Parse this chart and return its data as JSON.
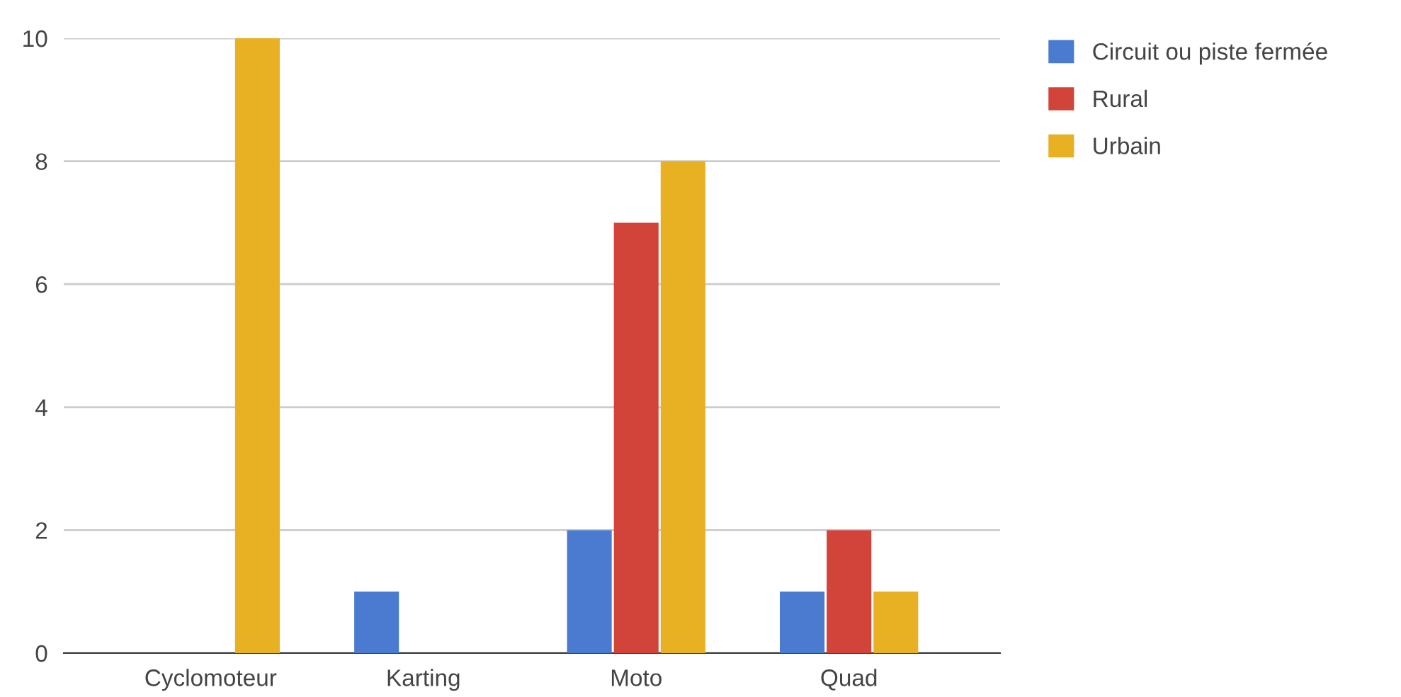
{
  "chart_data": {
    "type": "bar",
    "categories": [
      "Cyclomoteur",
      "Karting",
      "Moto",
      "Quad"
    ],
    "series": [
      {
        "name": "Circuit ou piste fermée",
        "color": "#4a7bd0",
        "values": [
          0,
          1,
          2,
          1
        ]
      },
      {
        "name": "Rural",
        "color": "#d2433a",
        "values": [
          0,
          0,
          7,
          2
        ]
      },
      {
        "name": "Urbain",
        "color": "#e8b123",
        "values": [
          10,
          0,
          8,
          1
        ]
      }
    ],
    "ylim": [
      0,
      10
    ],
    "yticks": [
      0,
      2,
      4,
      6,
      8,
      10
    ],
    "grid": "y",
    "legend": "top right"
  }
}
